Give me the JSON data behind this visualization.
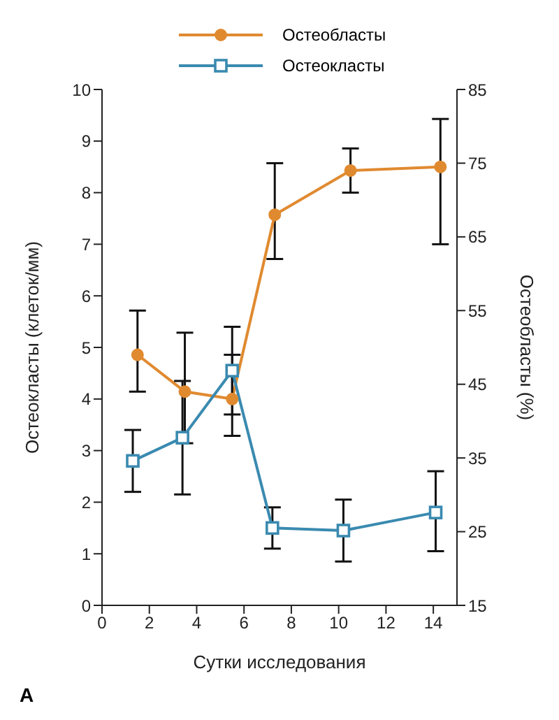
{
  "chart_data": {
    "type": "line",
    "xlabel": "Сутки исследования",
    "ylabel": "Остеокласты (клеток/мм)",
    "y2label": "Остеобласты (%)",
    "xlim": [
      0,
      15
    ],
    "xticks": [
      0,
      2,
      4,
      6,
      8,
      10,
      12,
      14
    ],
    "ylim": [
      0,
      10
    ],
    "yticks": [
      0,
      1,
      2,
      3,
      4,
      5,
      6,
      7,
      8,
      9,
      10
    ],
    "y2lim": [
      15,
      85
    ],
    "y2ticks": [
      15,
      25,
      35,
      45,
      55,
      65,
      75,
      85
    ],
    "legend": "top",
    "grid": false,
    "annotations": [
      "A"
    ],
    "series": [
      {
        "name": "Остеобласты",
        "color": "#e08a30",
        "axis": "y2",
        "marker": "circle",
        "x": [
          1.5,
          3.5,
          5.5,
          7.3,
          10.5,
          14.3
        ],
        "values": [
          49,
          44,
          43,
          68,
          74,
          74.5
        ],
        "errors": [
          [
            44,
            55
          ],
          [
            37,
            52
          ],
          [
            38,
            49
          ],
          [
            62,
            75
          ],
          [
            71,
            77
          ],
          [
            64,
            81
          ]
        ]
      },
      {
        "name": "Остеокласты",
        "color": "#3a8ab0",
        "marker": "square",
        "x": [
          1.3,
          3.4,
          5.5,
          7.2,
          10.2,
          14.1
        ],
        "values": [
          2.8,
          3.25,
          4.55,
          1.5,
          1.45,
          1.8
        ],
        "errors": [
          [
            2.2,
            3.4
          ],
          [
            2.15,
            4.35
          ],
          [
            3.7,
            5.4
          ],
          [
            1.1,
            1.9
          ],
          [
            0.85,
            2.05
          ],
          [
            1.05,
            2.6
          ]
        ]
      }
    ]
  }
}
